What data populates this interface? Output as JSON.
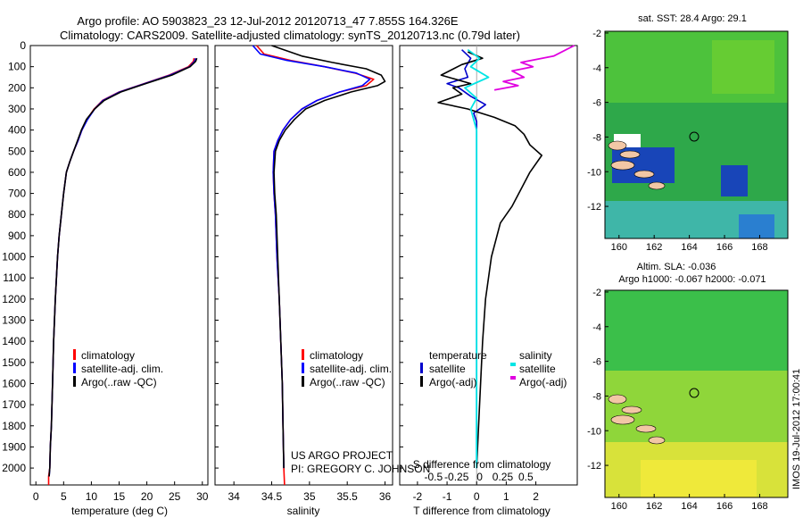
{
  "header": {
    "title_line1": "Argo profile: AO 5903823_23 12-Jul-2012 20120713_47 7.855S 164.326E",
    "title_line2": "Climatology: CARS2009. Satellite-adjusted climatology: synTS_20120713.nc (0.79d later)"
  },
  "credits": {
    "project": "US ARGO PROJECT",
    "pi": "PI: GREGORY C. JOHNSON",
    "side_stamp": "IMOS 19-Jul-2012 17:00:41"
  },
  "colors": {
    "climatology": "#ff0000",
    "satellite": "#0000ff",
    "argo": "#000000",
    "t_diff_satellite": "#0000cc",
    "s_diff_satellite": "#00e5e5",
    "s_diff_argo": "#e000e0"
  },
  "chart_data": [
    {
      "id": "temperature",
      "type": "line",
      "xlabel": "temperature (deg C)",
      "xlim": [
        -1,
        31
      ],
      "ylim": [
        2080,
        0
      ],
      "xticks": [
        "0",
        "5",
        "10",
        "15",
        "20",
        "25",
        "30"
      ],
      "yticks": [
        "0",
        "100",
        "200",
        "300",
        "400",
        "500",
        "600",
        "700",
        "800",
        "900",
        "1000",
        "1100",
        "1200",
        "1300",
        "1400",
        "1500",
        "1600",
        "1700",
        "1800",
        "1900",
        "2000"
      ],
      "legend": [
        "climatology",
        "satellite-adj. clim.",
        "Argo(..raw -QC)"
      ],
      "series": [
        {
          "name": "climatology",
          "color": "#ff0000",
          "x": [
            28.5,
            28.4,
            27.5,
            24,
            19.5,
            15,
            12,
            10.5,
            9.2,
            8.3,
            7.6,
            6.8,
            6.1,
            5.5,
            5.0,
            4.6,
            4.2,
            3.9,
            3.5,
            3.2,
            3.0,
            2.8,
            2.6,
            2.5,
            2.3,
            2.3
          ],
          "y": [
            60,
            75,
            100,
            140,
            180,
            220,
            260,
            300,
            350,
            400,
            450,
            500,
            550,
            600,
            700,
            800,
            900,
            1000,
            1200,
            1400,
            1600,
            1800,
            1900,
            2000,
            2040,
            2080
          ]
        },
        {
          "name": "satellite-adj. clim.",
          "color": "#0000ff",
          "x": [
            28.8,
            28.6,
            27.7,
            24.2,
            19.6,
            15.1,
            12.1,
            10.6,
            9.3,
            8.3,
            7.6,
            6.8,
            6.1,
            5.5,
            5.0,
            4.6,
            4.2,
            3.9,
            3.5,
            3.2,
            3.0,
            2.8,
            2.6,
            2.5,
            2.4
          ],
          "y": [
            60,
            75,
            100,
            140,
            180,
            220,
            260,
            300,
            350,
            400,
            450,
            500,
            550,
            600,
            700,
            800,
            900,
            1000,
            1200,
            1400,
            1600,
            1800,
            1900,
            2000,
            2040
          ]
        },
        {
          "name": "Argo(..raw -QC)",
          "color": "#000000",
          "x": [
            29.0,
            28.8,
            27.8,
            24.5,
            19.8,
            15.3,
            12.3,
            10.6,
            9.1,
            8.2,
            7.5,
            6.8,
            6.1,
            5.5,
            5.0,
            4.6,
            4.2,
            3.9,
            3.5,
            3.2,
            3.0,
            2.8,
            2.6,
            2.5,
            2.4
          ],
          "y": [
            60,
            75,
            100,
            140,
            180,
            220,
            260,
            300,
            350,
            400,
            450,
            500,
            550,
            600,
            700,
            800,
            900,
            1000,
            1200,
            1400,
            1600,
            1800,
            1900,
            2000,
            2040
          ]
        }
      ]
    },
    {
      "id": "salinity",
      "type": "line",
      "xlabel": "salinity",
      "xlim": [
        33.75,
        36.1
      ],
      "ylim": [
        2080,
        0
      ],
      "xticks": [
        "34",
        "34.5",
        "35",
        "35.5",
        "36"
      ],
      "legend": [
        "climatology",
        "satellite-adj. clim.",
        "Argo(..raw -QC)"
      ],
      "series": [
        {
          "name": "climatology",
          "color": "#ff0000",
          "x": [
            34.3,
            34.4,
            34.75,
            35.2,
            35.6,
            35.85,
            35.75,
            35.4,
            35.1,
            34.9,
            34.75,
            34.65,
            34.58,
            34.53,
            34.52,
            34.53,
            34.55,
            34.57,
            34.6,
            34.62,
            34.64,
            34.65,
            34.66,
            34.67
          ],
          "y": [
            0,
            40,
            70,
            100,
            130,
            160,
            190,
            220,
            260,
            300,
            350,
            400,
            450,
            500,
            600,
            700,
            800,
            1000,
            1200,
            1400,
            1600,
            1800,
            2000,
            2080
          ]
        },
        {
          "name": "satellite-adj. clim.",
          "color": "#0000ff",
          "x": [
            34.25,
            34.35,
            34.7,
            35.2,
            35.62,
            35.8,
            35.7,
            35.4,
            35.1,
            34.9,
            34.75,
            34.65,
            34.58,
            34.53,
            34.52,
            34.53,
            34.55,
            34.57,
            34.6,
            34.62,
            34.64,
            34.65,
            34.66
          ],
          "y": [
            0,
            40,
            70,
            100,
            130,
            160,
            190,
            220,
            260,
            300,
            350,
            400,
            450,
            500,
            600,
            700,
            800,
            1000,
            1200,
            1400,
            1600,
            1800,
            2000
          ]
        },
        {
          "name": "Argo(..raw -QC)",
          "color": "#000000",
          "x": [
            34.5,
            34.9,
            35.3,
            35.75,
            35.95,
            36.0,
            35.9,
            35.55,
            35.2,
            34.95,
            34.8,
            34.68,
            34.6,
            34.55,
            34.53,
            34.54,
            34.56,
            34.58,
            34.6,
            34.62,
            34.64,
            34.65,
            34.66
          ],
          "y": [
            0,
            50,
            80,
            110,
            140,
            170,
            190,
            220,
            260,
            300,
            350,
            400,
            450,
            500,
            600,
            700,
            800,
            1000,
            1200,
            1400,
            1600,
            1800,
            2000
          ]
        }
      ]
    },
    {
      "id": "difference",
      "type": "line",
      "xlabel": "T difference from climatology",
      "xlabel2": "S difference from climatology",
      "xlim": [
        -2.6,
        3.4
      ],
      "ylim": [
        2080,
        0
      ],
      "xticks": [
        "-2",
        "-1",
        "0",
        "1",
        "2"
      ],
      "xticks2": [
        "-0.5",
        "-0.25",
        "0",
        "0.25",
        "0.5"
      ],
      "legend_headers": [
        "temperature",
        "salinity"
      ],
      "legend": [
        "satellite",
        "Argo(-adj)",
        "satellite",
        "Argo(-adj)"
      ],
      "series": [
        {
          "name": "satellite",
          "color": "#0000cc",
          "x": [
            -0.5,
            -0.2,
            -0.4,
            -0.3,
            -1.0,
            -0.6,
            -0.2,
            0.3,
            -0.1,
            0.0,
            0.0,
            0.0,
            0.0,
            0.0,
            0.0,
            0.0,
            0.0
          ],
          "y": [
            20,
            60,
            110,
            150,
            180,
            200,
            240,
            280,
            320,
            360,
            400,
            500,
            700,
            1000,
            1400,
            1800,
            2000
          ]
        },
        {
          "name": "Argo(-adj)",
          "color": "#000000",
          "x": [
            -0.3,
            0.2,
            -0.5,
            -1.2,
            -0.2,
            -0.8,
            -0.5,
            -1.3,
            -0.3,
            0.6,
            1.3,
            1.6,
            1.8,
            2.2,
            1.8,
            1.5,
            1.2,
            0.8,
            0.5,
            0.3,
            0.2,
            0.1,
            0.0
          ],
          "y": [
            30,
            60,
            90,
            140,
            180,
            200,
            230,
            270,
            300,
            340,
            380,
            420,
            470,
            520,
            600,
            680,
            760,
            840,
            1000,
            1200,
            1400,
            1700,
            2000
          ]
        },
        {
          "name": "satellite",
          "color": "#00e5e5",
          "x": [
            -0.3,
            0.1,
            -0.2,
            0.4,
            -0.4,
            0.0,
            -0.2,
            0.0,
            0.0,
            0.0,
            0.0
          ],
          "y": [
            20,
            60,
            100,
            150,
            200,
            250,
            300,
            400,
            800,
            1400,
            2000
          ]
        },
        {
          "name": "Argo(-adj)",
          "color": "#e000e0",
          "x": [
            3.3,
            2.6,
            1.5,
            1.9,
            1.2,
            1.6,
            0.9,
            1.4,
            0.6
          ],
          "y": [
            0,
            50,
            80,
            100,
            120,
            150,
            170,
            190,
            210
          ]
        }
      ]
    }
  ],
  "maps": [
    {
      "id": "sst-map",
      "title": "sat. SST: 28.4 Argo: 29.1",
      "xticks": [
        "160",
        "162",
        "164",
        "166",
        "168"
      ],
      "yticks": [
        "-2",
        "-4",
        "-6",
        "-8",
        "-10",
        "-12"
      ],
      "marker": [
        164.3,
        -7.86
      ]
    },
    {
      "id": "sla-map",
      "title1": "Altim. SLA: -0.036",
      "title2": "Argo h1000: -0.067 h2000: -0.071",
      "xticks": [
        "160",
        "162",
        "164",
        "166",
        "168"
      ],
      "yticks": [
        "-2",
        "-4",
        "-6",
        "-8",
        "-10",
        "-12"
      ],
      "marker": [
        164.3,
        -7.86
      ]
    }
  ]
}
